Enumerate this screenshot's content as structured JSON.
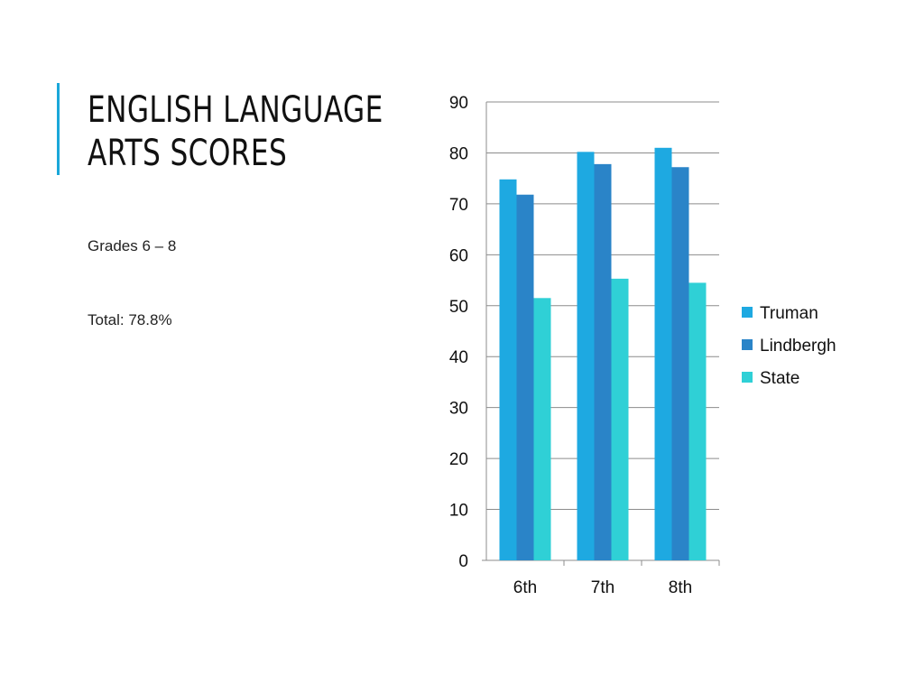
{
  "slide": {
    "title_line1": "ENGLISH LANGUAGE",
    "title_line2": "ARTS SCORES",
    "subtitle": "Grades 6 – 8",
    "total": "Total:  78.8%"
  },
  "colors": {
    "accent": "#1aa7d9",
    "Truman": "#1ea9e1",
    "Lindbergh": "#2a84c8",
    "State": "#2fd0d6",
    "grid": "#8c8c8c"
  },
  "chart_data": {
    "type": "bar",
    "categories": [
      "6th",
      "7th",
      "8th"
    ],
    "series": [
      {
        "name": "Truman",
        "values": [
          74.8,
          80.2,
          81.0
        ]
      },
      {
        "name": "Lindbergh",
        "values": [
          71.8,
          77.8,
          77.2
        ]
      },
      {
        "name": "State",
        "values": [
          51.5,
          55.3,
          54.5
        ]
      }
    ],
    "ylim": [
      0,
      90
    ],
    "yticks": [
      0,
      10,
      20,
      30,
      40,
      50,
      60,
      70,
      80,
      90
    ],
    "grid": true,
    "legend_position": "right"
  }
}
